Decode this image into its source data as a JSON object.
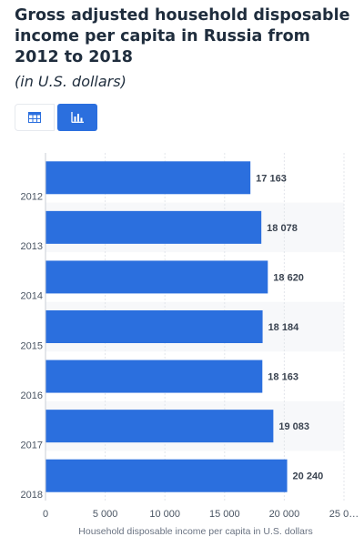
{
  "header": {
    "title": "Gross adjusted household disposable income per capita in Russia from 2012 to 2018",
    "subtitle": "(in U.S. dollars)"
  },
  "toggles": {
    "table_icon": "table-icon",
    "bar_icon": "bar-chart-icon",
    "active_color": "#2b6fde"
  },
  "chart_data": {
    "type": "bar",
    "orientation": "horizontal",
    "categories": [
      "2012",
      "2013",
      "2014",
      "2015",
      "2016",
      "2017",
      "2018"
    ],
    "values": [
      17163,
      18078,
      18620,
      18184,
      18163,
      19083,
      20240
    ],
    "value_labels": [
      "17 163",
      "18 078",
      "18 620",
      "18 184",
      "18 163",
      "19 083",
      "20 240"
    ],
    "xlabel": "Household disposable income per capita in U.S. dollars",
    "ylabel": "",
    "xlim": [
      0,
      25000
    ],
    "xticks": [
      0,
      5000,
      10000,
      15000,
      20000,
      25000
    ],
    "xtick_labels": [
      "0",
      "5 000",
      "10 000",
      "15 000",
      "20 000",
      "25 0…"
    ],
    "bar_color": "#2b6fde",
    "grid": true,
    "legend": "none"
  }
}
